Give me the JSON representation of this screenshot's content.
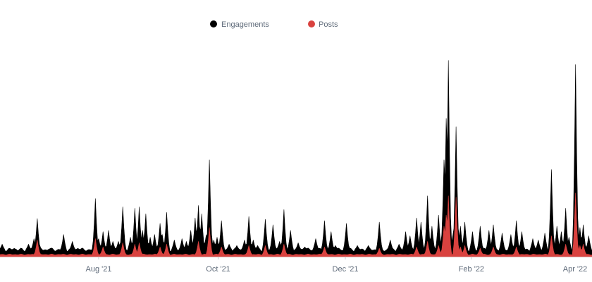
{
  "chart_data": {
    "type": "area",
    "legend_position": "top-center",
    "grid": false,
    "series": [
      {
        "name": "Engagements",
        "color": "#000000",
        "baseline": 10,
        "spikes": [
          {
            "day": 2,
            "v": 18
          },
          {
            "day": 13,
            "v": 12
          },
          {
            "day": 26,
            "v": 18
          },
          {
            "day": 31,
            "v": 26
          },
          {
            "day": 34,
            "v": 55
          },
          {
            "day": 36,
            "v": 16
          },
          {
            "day": 46,
            "v": 12
          },
          {
            "day": 58,
            "v": 32
          },
          {
            "day": 66,
            "v": 22
          },
          {
            "day": 71,
            "v": 12
          },
          {
            "day": 87,
            "v": 84
          },
          {
            "day": 90,
            "v": 26
          },
          {
            "day": 94,
            "v": 36
          },
          {
            "day": 99,
            "v": 38
          },
          {
            "day": 103,
            "v": 22
          },
          {
            "day": 108,
            "v": 22
          },
          {
            "day": 112,
            "v": 72
          },
          {
            "day": 119,
            "v": 28
          },
          {
            "day": 123,
            "v": 70
          },
          {
            "day": 127,
            "v": 72
          },
          {
            "day": 130,
            "v": 38
          },
          {
            "day": 133,
            "v": 62
          },
          {
            "day": 137,
            "v": 28
          },
          {
            "day": 141,
            "v": 32
          },
          {
            "day": 146,
            "v": 48
          },
          {
            "day": 148,
            "v": 32
          },
          {
            "day": 152,
            "v": 64
          },
          {
            "day": 159,
            "v": 24
          },
          {
            "day": 166,
            "v": 26
          },
          {
            "day": 170,
            "v": 22
          },
          {
            "day": 174,
            "v": 38
          },
          {
            "day": 178,
            "v": 56
          },
          {
            "day": 181,
            "v": 74
          },
          {
            "day": 184,
            "v": 62
          },
          {
            "day": 188,
            "v": 30
          },
          {
            "day": 191,
            "v": 140
          },
          {
            "day": 195,
            "v": 24
          },
          {
            "day": 198,
            "v": 28
          },
          {
            "day": 202,
            "v": 52
          },
          {
            "day": 209,
            "v": 18
          },
          {
            "day": 216,
            "v": 16
          },
          {
            "day": 223,
            "v": 24
          },
          {
            "day": 227,
            "v": 58
          },
          {
            "day": 231,
            "v": 24
          },
          {
            "day": 235,
            "v": 16
          },
          {
            "day": 242,
            "v": 54
          },
          {
            "day": 249,
            "v": 46
          },
          {
            "day": 255,
            "v": 22
          },
          {
            "day": 259,
            "v": 68
          },
          {
            "day": 265,
            "v": 38
          },
          {
            "day": 272,
            "v": 20
          },
          {
            "day": 278,
            "v": 14
          },
          {
            "day": 288,
            "v": 26
          },
          {
            "day": 296,
            "v": 52
          },
          {
            "day": 302,
            "v": 36
          },
          {
            "day": 306,
            "v": 16
          },
          {
            "day": 316,
            "v": 48
          },
          {
            "day": 326,
            "v": 16
          },
          {
            "day": 336,
            "v": 16
          },
          {
            "day": 346,
            "v": 50
          },
          {
            "day": 356,
            "v": 24
          },
          {
            "day": 364,
            "v": 18
          },
          {
            "day": 370,
            "v": 36
          },
          {
            "day": 374,
            "v": 30
          },
          {
            "day": 380,
            "v": 56
          },
          {
            "day": 384,
            "v": 50
          },
          {
            "day": 390,
            "v": 88
          },
          {
            "day": 394,
            "v": 44
          },
          {
            "day": 400,
            "v": 60
          },
          {
            "day": 405,
            "v": 140
          },
          {
            "day": 407,
            "v": 200
          },
          {
            "day": 409,
            "v": 284
          },
          {
            "day": 413,
            "v": 30
          },
          {
            "day": 416,
            "v": 188
          },
          {
            "day": 420,
            "v": 44
          },
          {
            "day": 424,
            "v": 50
          },
          {
            "day": 431,
            "v": 36
          },
          {
            "day": 438,
            "v": 44
          },
          {
            "day": 446,
            "v": 38
          },
          {
            "day": 450,
            "v": 46
          },
          {
            "day": 458,
            "v": 34
          },
          {
            "day": 466,
            "v": 32
          },
          {
            "day": 471,
            "v": 52
          },
          {
            "day": 476,
            "v": 36
          },
          {
            "day": 486,
            "v": 26
          },
          {
            "day": 491,
            "v": 24
          },
          {
            "day": 497,
            "v": 34
          },
          {
            "day": 503,
            "v": 126
          },
          {
            "day": 508,
            "v": 44
          },
          {
            "day": 512,
            "v": 36
          },
          {
            "day": 516,
            "v": 70
          },
          {
            "day": 519,
            "v": 28
          },
          {
            "day": 525,
            "v": 278
          },
          {
            "day": 529,
            "v": 42
          },
          {
            "day": 532,
            "v": 46
          },
          {
            "day": 537,
            "v": 30
          }
        ]
      },
      {
        "name": "Posts",
        "color": "#d9423f",
        "baseline": 3,
        "spikes": [
          {
            "day": 34,
            "v": 24
          },
          {
            "day": 87,
            "v": 26
          },
          {
            "day": 94,
            "v": 14
          },
          {
            "day": 112,
            "v": 20
          },
          {
            "day": 123,
            "v": 18
          },
          {
            "day": 127,
            "v": 20
          },
          {
            "day": 146,
            "v": 14
          },
          {
            "day": 152,
            "v": 18
          },
          {
            "day": 181,
            "v": 22
          },
          {
            "day": 191,
            "v": 42
          },
          {
            "day": 202,
            "v": 14
          },
          {
            "day": 227,
            "v": 16
          },
          {
            "day": 242,
            "v": 16
          },
          {
            "day": 259,
            "v": 18
          },
          {
            "day": 296,
            "v": 14
          },
          {
            "day": 346,
            "v": 12
          },
          {
            "day": 380,
            "v": 14
          },
          {
            "day": 390,
            "v": 22
          },
          {
            "day": 400,
            "v": 16
          },
          {
            "day": 405,
            "v": 44
          },
          {
            "day": 407,
            "v": 60
          },
          {
            "day": 409,
            "v": 88
          },
          {
            "day": 416,
            "v": 86
          },
          {
            "day": 420,
            "v": 14
          },
          {
            "day": 424,
            "v": 16
          },
          {
            "day": 438,
            "v": 12
          },
          {
            "day": 450,
            "v": 14
          },
          {
            "day": 471,
            "v": 14
          },
          {
            "day": 503,
            "v": 30
          },
          {
            "day": 516,
            "v": 18
          },
          {
            "day": 525,
            "v": 92
          },
          {
            "day": 529,
            "v": 16
          },
          {
            "day": 532,
            "v": 18
          }
        ]
      }
    ],
    "x_range_days": [
      0,
      540
    ],
    "x_ticks": [
      {
        "label": "Aug '21",
        "day": 90
      },
      {
        "label": "Oct '21",
        "day": 199
      },
      {
        "label": "Dec '21",
        "day": 315
      },
      {
        "label": "Feb '22",
        "day": 430
      },
      {
        "label": "Apr '22",
        "day": 543
      }
    ],
    "y_range": [
      0,
      300
    ]
  }
}
